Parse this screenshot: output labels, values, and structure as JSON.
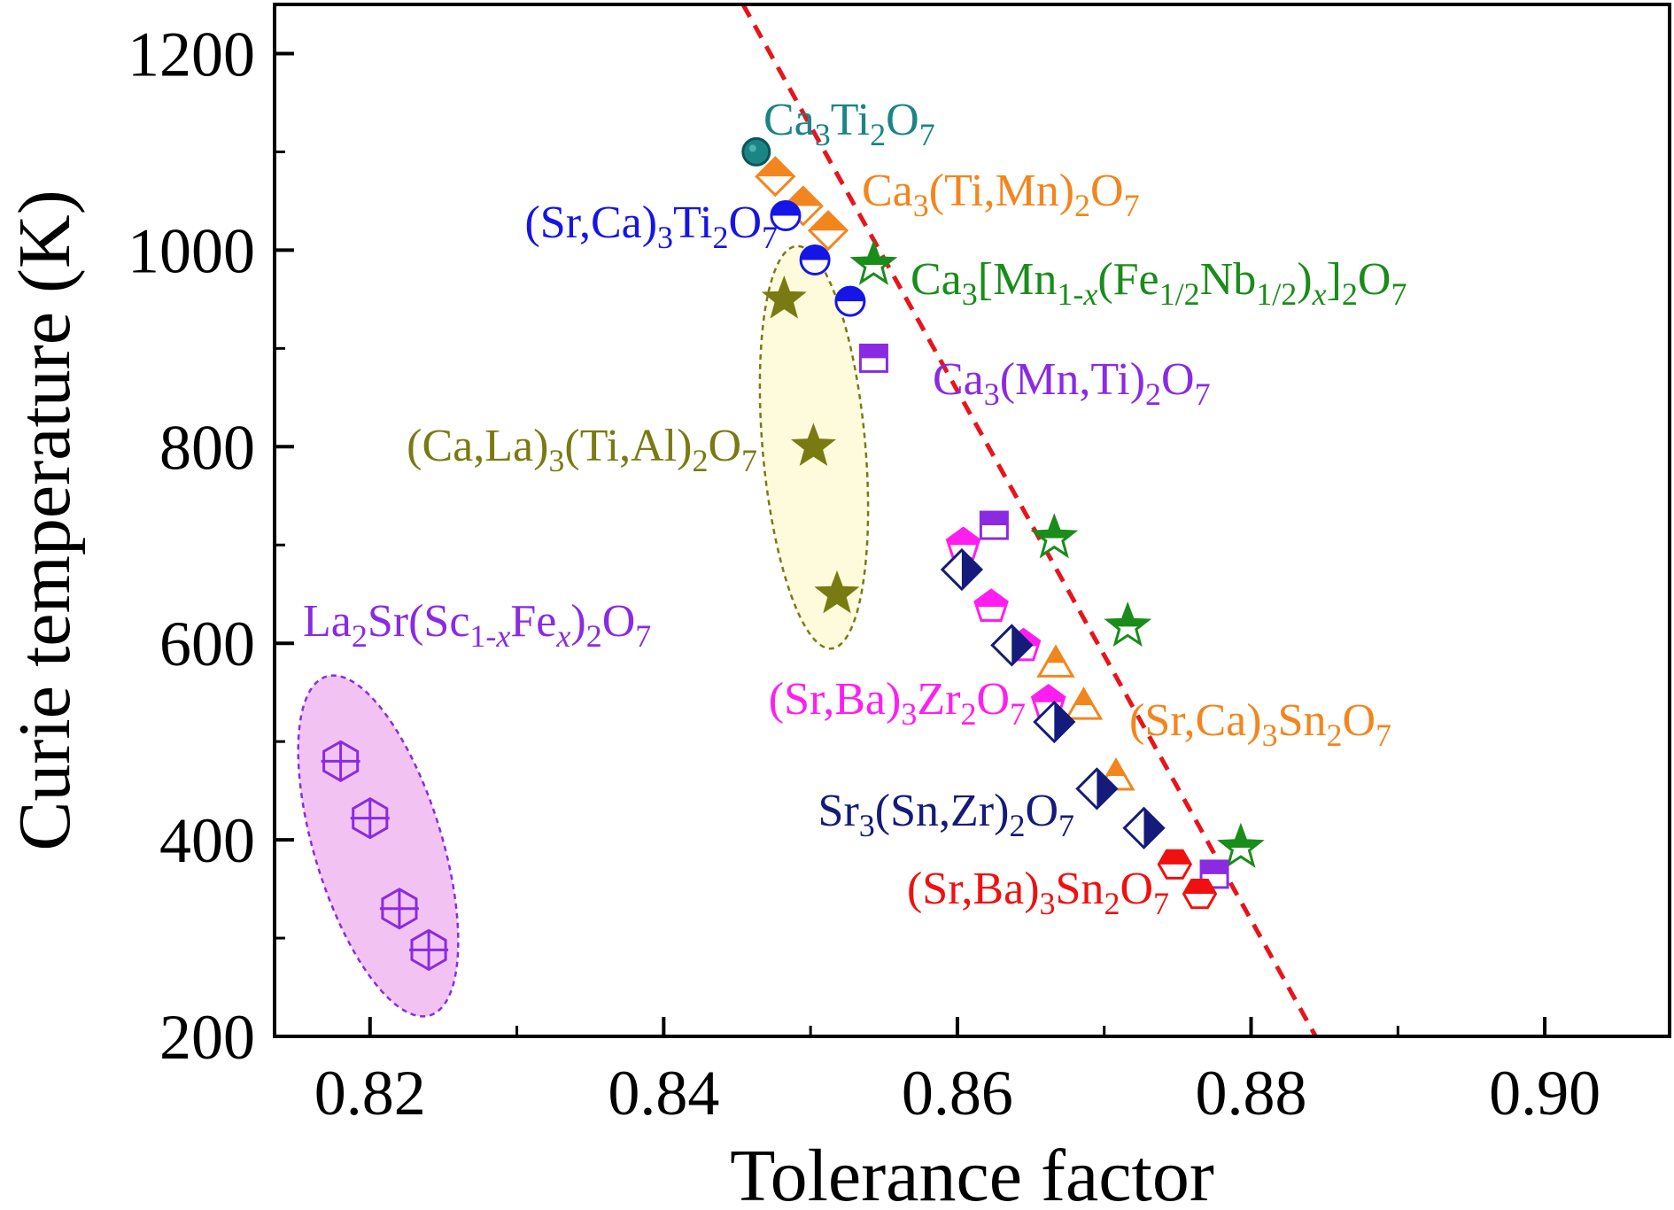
{
  "chart_data": {
    "type": "scatter",
    "xlabel": "Tolerance factor",
    "ylabel": "Curie temperature (K)",
    "xlim": [
      0.8135,
      0.9085
    ],
    "ylim": [
      200,
      1250
    ],
    "xticks": [
      0.82,
      0.84,
      0.86,
      0.88,
      0.9
    ],
    "xtick_labels": [
      "0.82",
      "0.84",
      "0.86",
      "0.88",
      "0.90"
    ],
    "yticks": [
      200,
      400,
      600,
      800,
      1000,
      1200
    ],
    "ytick_labels": [
      "200",
      "400",
      "600",
      "800",
      "1000",
      "1200"
    ],
    "grid": false,
    "legend": "none",
    "trendline": {
      "style": "dashed",
      "color": "#e8141c",
      "points": [
        [
          0.8454,
          1250
        ],
        [
          0.8844,
          200
        ]
      ]
    },
    "series": [
      {
        "name": "Ca3Ti2O7",
        "label_parts": [
          [
            "Ca",
            ""
          ],
          [
            "3",
            "sub"
          ],
          [
            "Ti",
            ""
          ],
          [
            "2",
            "sub"
          ],
          [
            "O",
            ""
          ],
          [
            "7",
            "sub"
          ]
        ],
        "color": "#1b8585",
        "marker": "circle-solid",
        "points": [
          [
            0.8463,
            1100
          ]
        ]
      },
      {
        "name": "Ca3(Ti,Mn)2O7",
        "label_parts": [
          [
            "Ca",
            ""
          ],
          [
            "3",
            "sub"
          ],
          [
            "(Ti,Mn)",
            ""
          ],
          [
            "2",
            "sub"
          ],
          [
            "O",
            ""
          ],
          [
            "7",
            "sub"
          ]
        ],
        "color": "#f2861e",
        "marker": "diamond-half",
        "points": [
          [
            0.8476,
            1075
          ],
          [
            0.8495,
            1045
          ],
          [
            0.8512,
            1020
          ]
        ]
      },
      {
        "name": "(Sr,Ca)3Ti2O7",
        "label_parts": [
          [
            "(Sr,Ca)",
            ""
          ],
          [
            "3",
            "sub"
          ],
          [
            "Ti",
            ""
          ],
          [
            "2",
            "sub"
          ],
          [
            "O",
            ""
          ],
          [
            "7",
            "sub"
          ]
        ],
        "color": "#1515e6",
        "marker": "circle-half",
        "points": [
          [
            0.8483,
            1035
          ],
          [
            0.8503,
            990
          ],
          [
            0.8527,
            948
          ]
        ]
      },
      {
        "name": "Ca3[Mn1-x(Fe1/2Nb1/2)x]2O7",
        "label_parts": [
          [
            "Ca",
            ""
          ],
          [
            "3",
            "sub"
          ],
          [
            "[Mn",
            ""
          ],
          [
            "1-",
            "sub"
          ],
          [
            "x",
            "subi"
          ],
          [
            "(Fe",
            ""
          ],
          [
            "1/2",
            "sub"
          ],
          [
            "Nb",
            ""
          ],
          [
            "1/2",
            "sub"
          ],
          [
            ")",
            ""
          ],
          [
            "x",
            "subi"
          ],
          [
            "]",
            ""
          ],
          [
            "2",
            "sub"
          ],
          [
            "O",
            ""
          ],
          [
            "7",
            "sub"
          ]
        ],
        "color": "#1a8c1a",
        "marker": "star-half",
        "points": [
          [
            0.8543,
            985
          ],
          [
            0.8666,
            707
          ],
          [
            0.8716,
            617
          ],
          [
            0.8793,
            392
          ]
        ]
      },
      {
        "name": "Ca3(Mn,Ti)2O7",
        "label_parts": [
          [
            "Ca",
            ""
          ],
          [
            "3",
            "sub"
          ],
          [
            "(Mn,Ti)",
            ""
          ],
          [
            "2",
            "sub"
          ],
          [
            "O",
            ""
          ],
          [
            "7",
            "sub"
          ]
        ],
        "color": "#8a2be2",
        "marker": "square-half",
        "points": [
          [
            0.8543,
            890
          ],
          [
            0.8625,
            720
          ],
          [
            0.8775,
            365
          ]
        ]
      },
      {
        "name": "(Ca,La)3(Ti,Al)2O7",
        "label_parts": [
          [
            "(Ca,La)",
            ""
          ],
          [
            "3",
            "sub"
          ],
          [
            "(Ti,Al)",
            ""
          ],
          [
            "2",
            "sub"
          ],
          [
            "O",
            ""
          ],
          [
            "7",
            "sub"
          ]
        ],
        "color": "#7a7a12",
        "marker": "star-solid",
        "points": [
          [
            0.8482,
            950
          ],
          [
            0.8502,
            800
          ],
          [
            0.8518,
            650
          ]
        ]
      },
      {
        "name": "(Sr,Ba)3Zr2O7",
        "label_parts": [
          [
            "(Sr,Ba)",
            ""
          ],
          [
            "3",
            "sub"
          ],
          [
            "Zr",
            ""
          ],
          [
            "2",
            "sub"
          ],
          [
            "O",
            ""
          ],
          [
            "7",
            "sub"
          ]
        ],
        "color": "#ff1ef0",
        "marker": "pentagon-half",
        "points": [
          [
            0.8604,
            700
          ],
          [
            0.8623,
            637
          ],
          [
            0.8645,
            597
          ],
          [
            0.8662,
            540
          ]
        ]
      },
      {
        "name": "(Sr,Ca)3Sn2O7",
        "label_parts": [
          [
            "(Sr,Ca)",
            ""
          ],
          [
            "3",
            "sub"
          ],
          [
            "Sn",
            ""
          ],
          [
            "2",
            "sub"
          ],
          [
            "O",
            ""
          ],
          [
            "7",
            "sub"
          ]
        ],
        "color": "#f2861e",
        "marker": "triangle-half",
        "points": [
          [
            0.8667,
            580
          ],
          [
            0.8686,
            537
          ],
          [
            0.8708,
            465
          ]
        ]
      },
      {
        "name": "Sr3(Sn,Zr)2O7",
        "label_parts": [
          [
            "Sr",
            ""
          ],
          [
            "3",
            "sub"
          ],
          [
            "(Sn,Zr)",
            ""
          ],
          [
            "2",
            "sub"
          ],
          [
            "O",
            ""
          ],
          [
            "7",
            "sub"
          ]
        ],
        "color": "#141b7a",
        "marker": "diamond-lr",
        "points": [
          [
            0.8603,
            675
          ],
          [
            0.8637,
            598
          ],
          [
            0.8666,
            520
          ],
          [
            0.8695,
            452
          ],
          [
            0.8727,
            412
          ]
        ]
      },
      {
        "name": "(Sr,Ba)3Sn2O7",
        "label_parts": [
          [
            "(Sr,Ba)",
            ""
          ],
          [
            "3",
            "sub"
          ],
          [
            "Sn",
            ""
          ],
          [
            "2",
            "sub"
          ],
          [
            "O",
            ""
          ],
          [
            "7",
            "sub"
          ]
        ],
        "color": "#f01010",
        "marker": "hexagon-half",
        "points": [
          [
            0.8748,
            375
          ],
          [
            0.8765,
            345
          ]
        ]
      },
      {
        "name": "La2Sr(Sc1-xFex)2O7",
        "label_parts": [
          [
            "La",
            ""
          ],
          [
            "2",
            "sub"
          ],
          [
            "Sr(Sc",
            ""
          ],
          [
            "1-",
            "sub"
          ],
          [
            "x",
            "subi"
          ],
          [
            "Fe",
            ""
          ],
          [
            "x",
            "subi"
          ],
          [
            ")",
            ""
          ],
          [
            "2",
            "sub"
          ],
          [
            "O",
            ""
          ],
          [
            "7",
            "sub"
          ]
        ],
        "color": "#8a2be2",
        "marker": "hexagon-cross",
        "points": [
          [
            0.818,
            480
          ],
          [
            0.82,
            422
          ],
          [
            0.822,
            330
          ],
          [
            0.824,
            288
          ]
        ]
      }
    ]
  }
}
